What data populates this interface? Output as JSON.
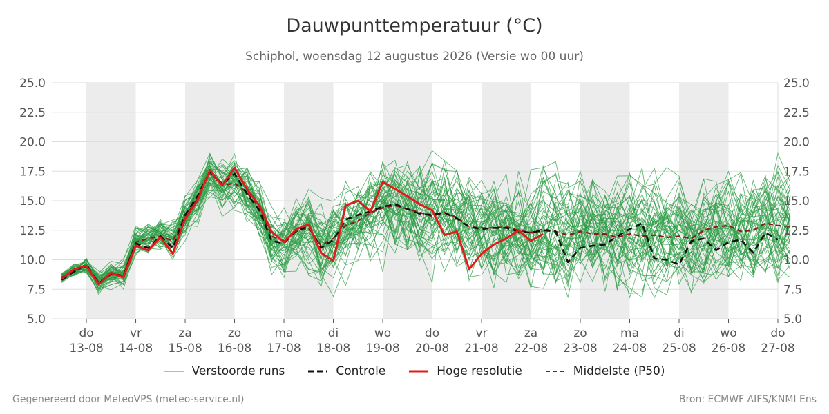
{
  "title": "Dauwpunttemperatuur (°C)",
  "subtitle": "Schiphol, woensdag 12 augustus 2026 (Versie wo 00 uur)",
  "footer_left": "Gegenereerd door MeteoVPS (meteo-service.nl)",
  "footer_right": "Bron: ECMWF AIFS/KNMI Ens",
  "colors": {
    "ensemble": "#2e9e45",
    "control": "#111111",
    "hires": "#e01b1b",
    "median": "#8b1a1a",
    "weekend_band": "#ececec",
    "grid": "#dddddd"
  },
  "legend": [
    {
      "label": "Verstoorde runs",
      "style": "ensemble"
    },
    {
      "label": "Controle",
      "style": "control"
    },
    {
      "label": "Hoge resolutie",
      "style": "hires"
    },
    {
      "label": "Middelste (P50)",
      "style": "median"
    }
  ],
  "chart_data": {
    "type": "line",
    "ylim": [
      5.0,
      25.0
    ],
    "yticks": [
      "5.0",
      "7.5",
      "10.0",
      "12.5",
      "15.0",
      "17.5",
      "20.0",
      "22.5",
      "25.0"
    ],
    "xlim_days": [
      12.3,
      27.0
    ],
    "xticks": [
      {
        "day": 13,
        "weekday": "do",
        "date": "13-08"
      },
      {
        "day": 14,
        "weekday": "vr",
        "date": "14-08"
      },
      {
        "day": 15,
        "weekday": "za",
        "date": "15-08"
      },
      {
        "day": 16,
        "weekday": "zo",
        "date": "16-08"
      },
      {
        "day": 17,
        "weekday": "ma",
        "date": "17-08"
      },
      {
        "day": 18,
        "weekday": "di",
        "date": "18-08"
      },
      {
        "day": 19,
        "weekday": "wo",
        "date": "19-08"
      },
      {
        "day": 20,
        "weekday": "do",
        "date": "20-08"
      },
      {
        "day": 21,
        "weekday": "vr",
        "date": "21-08"
      },
      {
        "day": 22,
        "weekday": "za",
        "date": "22-08"
      },
      {
        "day": 23,
        "weekday": "zo",
        "date": "23-08"
      },
      {
        "day": 24,
        "weekday": "ma",
        "date": "24-08"
      },
      {
        "day": 25,
        "weekday": "di",
        "date": "25-08"
      },
      {
        "day": 26,
        "weekday": "wo",
        "date": "26-08"
      },
      {
        "day": 27,
        "weekday": "do",
        "date": "27-08"
      }
    ],
    "shaded_days": [
      [
        13,
        14
      ],
      [
        15,
        16
      ],
      [
        17,
        18
      ],
      [
        19,
        20
      ],
      [
        21,
        22
      ],
      [
        23,
        24
      ],
      [
        25,
        26
      ]
    ],
    "time_step_hours": 6,
    "start_day": 12.5,
    "series": [
      {
        "name": "Hoge resolutie",
        "values": [
          8.4,
          9.2,
          9.5,
          7.9,
          8.9,
          8.5,
          11.2,
          10.8,
          11.9,
          10.5,
          13.5,
          15.0,
          17.6,
          16.3,
          17.8,
          16.0,
          14.6,
          12.4,
          11.5,
          12.6,
          13.0,
          10.6,
          9.9,
          14.6,
          15.0,
          14.1,
          16.6,
          16.0,
          15.4,
          14.7,
          14.2,
          12.1,
          12.4,
          9.2,
          10.5,
          11.3,
          11.8,
          12.5,
          11.6,
          12.2
        ]
      },
      {
        "name": "Controle",
        "values": [
          8.3,
          9.0,
          9.6,
          8.0,
          8.8,
          8.6,
          11.4,
          11.0,
          12.0,
          11.0,
          13.8,
          15.4,
          17.5,
          16.4,
          17.3,
          15.6,
          14.2,
          11.6,
          11.4,
          12.5,
          12.8,
          11.0,
          11.7,
          13.4,
          13.8,
          14.1,
          14.5,
          14.7,
          14.3,
          13.9,
          13.8,
          14.0,
          13.5,
          12.8,
          12.6,
          12.7,
          12.7,
          12.4,
          12.3,
          12.5,
          12.4,
          9.8,
          11.0,
          11.2,
          11.3,
          12.0,
          12.6,
          13.1,
          10.1,
          10.0,
          9.6,
          11.6,
          11.8,
          10.8,
          11.5,
          11.7,
          10.6,
          12.3,
          11.7
        ]
      },
      {
        "name": "Middelste (P50)",
        "values": [
          8.5,
          9.1,
          9.4,
          8.1,
          8.8,
          8.7,
          11.5,
          11.8,
          12.0,
          11.6,
          13.6,
          15.2,
          17.4,
          16.3,
          16.5,
          15.7,
          14.5,
          12.0,
          11.6,
          12.4,
          12.7,
          11.2,
          11.8,
          12.9,
          13.3,
          14.0,
          14.4,
          14.6,
          14.3,
          14.0,
          13.7,
          14.0,
          13.6,
          12.8,
          12.7,
          12.7,
          12.8,
          12.5,
          12.3,
          12.6,
          12.4,
          12.1,
          12.4,
          12.2,
          12.2,
          11.9,
          12.2,
          12.0,
          12.1,
          11.9,
          12.0,
          11.8,
          12.5,
          12.8,
          12.9,
          12.4,
          12.5,
          13.1,
          12.9,
          12.8
        ]
      },
      {
        "name": "Verstoorde runs",
        "values": []
      }
    ]
  }
}
